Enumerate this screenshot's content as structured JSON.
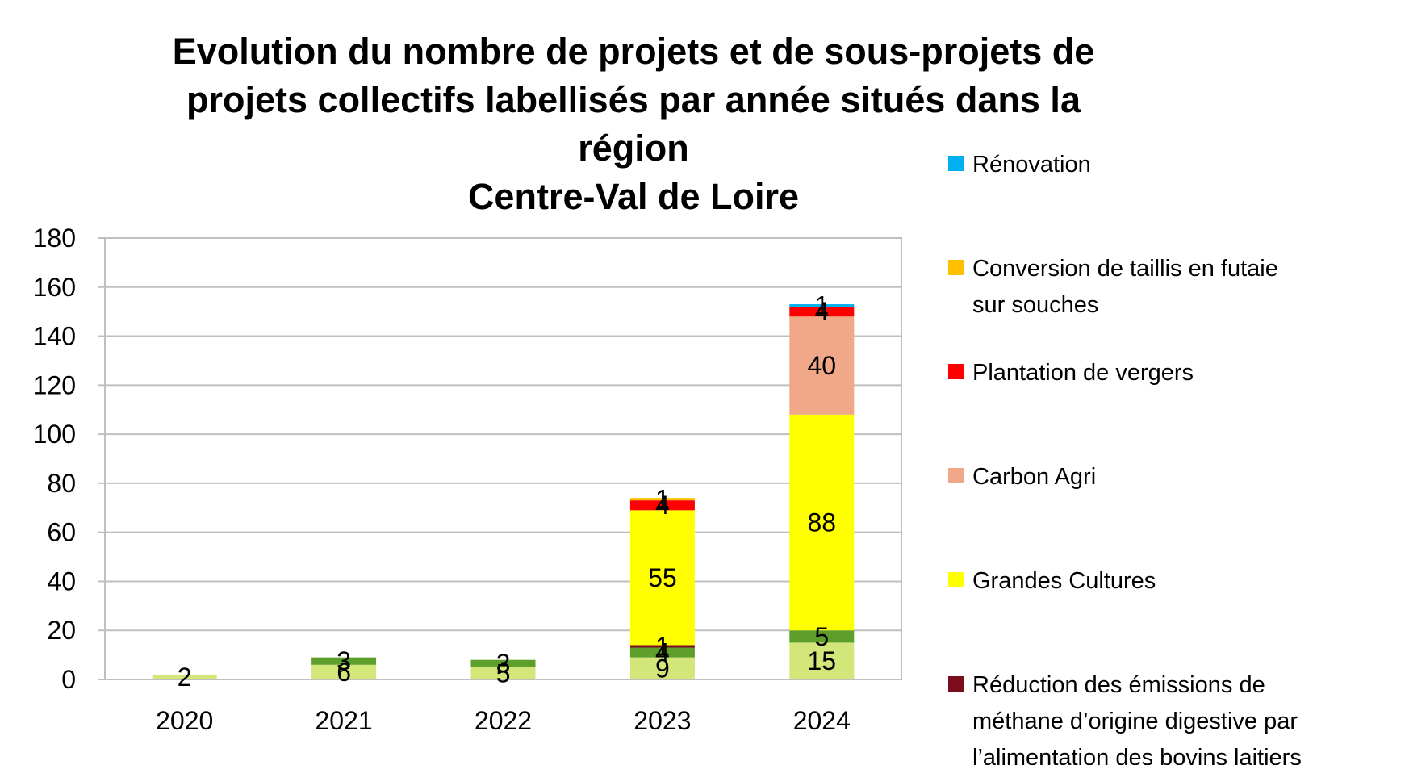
{
  "chart_data": {
    "type": "bar",
    "stacked": true,
    "title": "Evolution du nombre de projets et de sous-projets de projets collectifs labellisés par année situés dans la région Centre-Val de Loire",
    "title_lines": [
      "Evolution du nombre de projets et de sous-projets de",
      "projets collectifs labellisés par année situés dans la région",
      "Centre-Val de Loire"
    ],
    "xlabel": "",
    "ylabel": "",
    "categories": [
      "2020",
      "2021",
      "2022",
      "2023",
      "2024"
    ],
    "ylim": [
      0,
      180
    ],
    "yticks": [
      0,
      20,
      40,
      60,
      80,
      100,
      120,
      140,
      160,
      180
    ],
    "grid": true,
    "legend_position": "right",
    "series": [
      {
        "name": "",
        "color": "#d2e67a",
        "values": [
          2,
          6,
          5,
          9,
          15
        ],
        "labels": [
          "2",
          "6",
          "5",
          "9",
          "15"
        ]
      },
      {
        "name": "",
        "color": "#5e9e2a",
        "values": [
          0,
          3,
          3,
          4,
          5
        ],
        "labels": [
          "",
          "3",
          "3",
          "4",
          "5"
        ]
      },
      {
        "name": "Réduction des émissions de méthane d’origine digestive par l’alimentation des bovins laitiers",
        "color": "#7a0c1e",
        "values": [
          0,
          0,
          0,
          1,
          0
        ],
        "labels": [
          "",
          "",
          "",
          "1",
          ""
        ]
      },
      {
        "name": "Grandes Cultures",
        "color": "#ffff00",
        "values": [
          0,
          0,
          0,
          55,
          88
        ],
        "labels": [
          "",
          "",
          "",
          "55",
          "88"
        ]
      },
      {
        "name": "Carbon Agri",
        "color": "#f0a888",
        "values": [
          0,
          0,
          0,
          0,
          40
        ],
        "labels": [
          "",
          "",
          "",
          "",
          "40"
        ]
      },
      {
        "name": "Plantation de vergers",
        "color": "#ff0000",
        "values": [
          0,
          0,
          0,
          4,
          4
        ],
        "labels": [
          "",
          "",
          "",
          "4",
          "4"
        ]
      },
      {
        "name": "Conversion de taillis en futaie sur souches",
        "color": "#ffc000",
        "values": [
          0,
          0,
          0,
          1,
          0
        ],
        "labels": [
          "",
          "",
          "",
          "1",
          ""
        ]
      },
      {
        "name": "Rénovation",
        "color": "#00b0f0",
        "values": [
          0,
          0,
          0,
          0,
          1
        ],
        "labels": [
          "",
          "",
          "",
          "",
          "1"
        ]
      }
    ],
    "legend": [
      {
        "lines": [
          "Rénovation"
        ],
        "color": "#00b0f0"
      },
      {
        "lines": [
          "Conversion de taillis en futaie",
          "sur souches"
        ],
        "color": "#ffc000"
      },
      {
        "lines": [
          "Plantation de vergers"
        ],
        "color": "#ff0000"
      },
      {
        "lines": [
          "Carbon Agri"
        ],
        "color": "#f0a888"
      },
      {
        "lines": [
          "Grandes Cultures"
        ],
        "color": "#ffff00"
      },
      {
        "lines": [
          "Réduction des émissions de",
          "méthane d’origine digestive par",
          "l’alimentation des bovins laitiers"
        ],
        "color": "#7a0c1e"
      }
    ]
  }
}
